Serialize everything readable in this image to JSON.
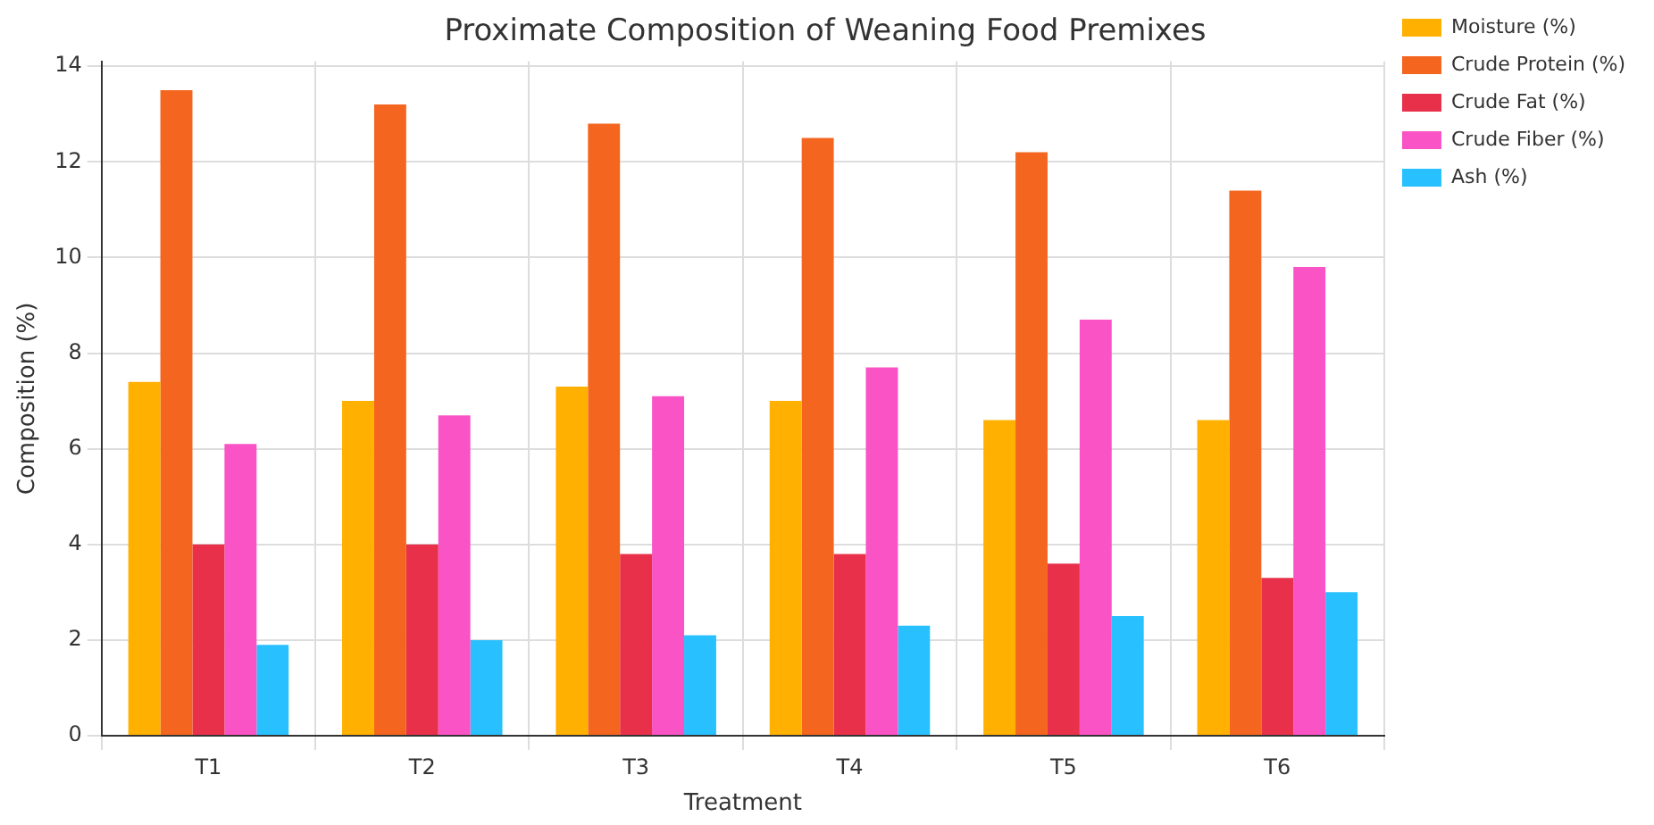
{
  "chart_data": {
    "type": "bar",
    "title": "Proximate Composition of Weaning Food Premixes",
    "xlabel": "Treatment",
    "ylabel": "Composition (%)",
    "categories": [
      "T1",
      "T2",
      "T3",
      "T4",
      "T5",
      "T6"
    ],
    "series": [
      {
        "name": "Moisture (%)",
        "color": "#ffb000",
        "values": [
          7.4,
          7.0,
          7.3,
          7.0,
          6.6,
          6.6
        ]
      },
      {
        "name": "Crude Protein (%)",
        "color": "#f4661f",
        "values": [
          13.5,
          13.2,
          12.8,
          12.5,
          12.2,
          11.4
        ]
      },
      {
        "name": "Crude Fat (%)",
        "color": "#e8304a",
        "values": [
          4.0,
          4.0,
          3.8,
          3.8,
          3.6,
          3.3
        ]
      },
      {
        "name": "Crude Fiber (%)",
        "color": "#f953c6",
        "values": [
          6.1,
          6.7,
          7.1,
          7.7,
          8.7,
          9.8
        ]
      },
      {
        "name": "Ash (%)",
        "color": "#29c0ff",
        "values": [
          1.9,
          2.0,
          2.1,
          2.3,
          2.5,
          3.0
        ]
      }
    ],
    "ylim": [
      0,
      14.1
    ],
    "yticks": [
      0,
      2,
      4,
      6,
      8,
      10,
      12,
      14
    ],
    "grid": true,
    "legend": "top right"
  }
}
